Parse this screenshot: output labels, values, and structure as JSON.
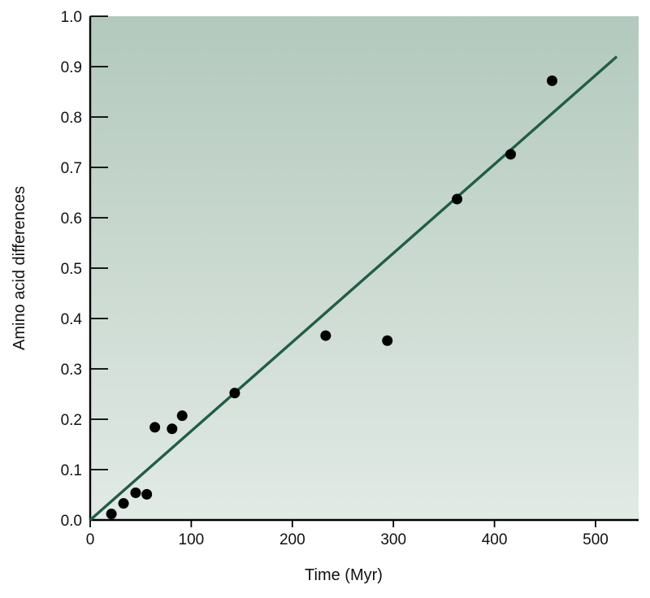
{
  "chart_data": {
    "type": "scatter",
    "title": "",
    "xlabel": "Time (Myr)",
    "ylabel": "Amino acid differences",
    "xlim": [
      0,
      540
    ],
    "ylim": [
      0,
      1.0
    ],
    "x_ticks": [
      0,
      100,
      200,
      300,
      400,
      500
    ],
    "y_ticks": [
      "0.0",
      "0.1",
      "0.2",
      "0.3",
      "0.4",
      "0.5",
      "0.6",
      "0.7",
      "0.8",
      "0.9",
      "1.0"
    ],
    "grid": false,
    "background": {
      "top_color": "#b3c9bd",
      "bottom_color": "#e2eae5"
    },
    "marker_color": "#000000",
    "line_color": "#1f5e47",
    "points": [
      {
        "x": 21,
        "y": 0.012
      },
      {
        "x": 33,
        "y": 0.033
      },
      {
        "x": 45,
        "y": 0.054
      },
      {
        "x": 56,
        "y": 0.051
      },
      {
        "x": 64,
        "y": 0.184
      },
      {
        "x": 81,
        "y": 0.181
      },
      {
        "x": 91,
        "y": 0.207
      },
      {
        "x": 143,
        "y": 0.252
      },
      {
        "x": 233,
        "y": 0.366
      },
      {
        "x": 294,
        "y": 0.356
      },
      {
        "x": 363,
        "y": 0.637
      },
      {
        "x": 416,
        "y": 0.726
      },
      {
        "x": 457,
        "y": 0.872
      }
    ],
    "fit_line": {
      "x": [
        0,
        521
      ],
      "y": [
        0.0,
        0.92
      ]
    }
  }
}
